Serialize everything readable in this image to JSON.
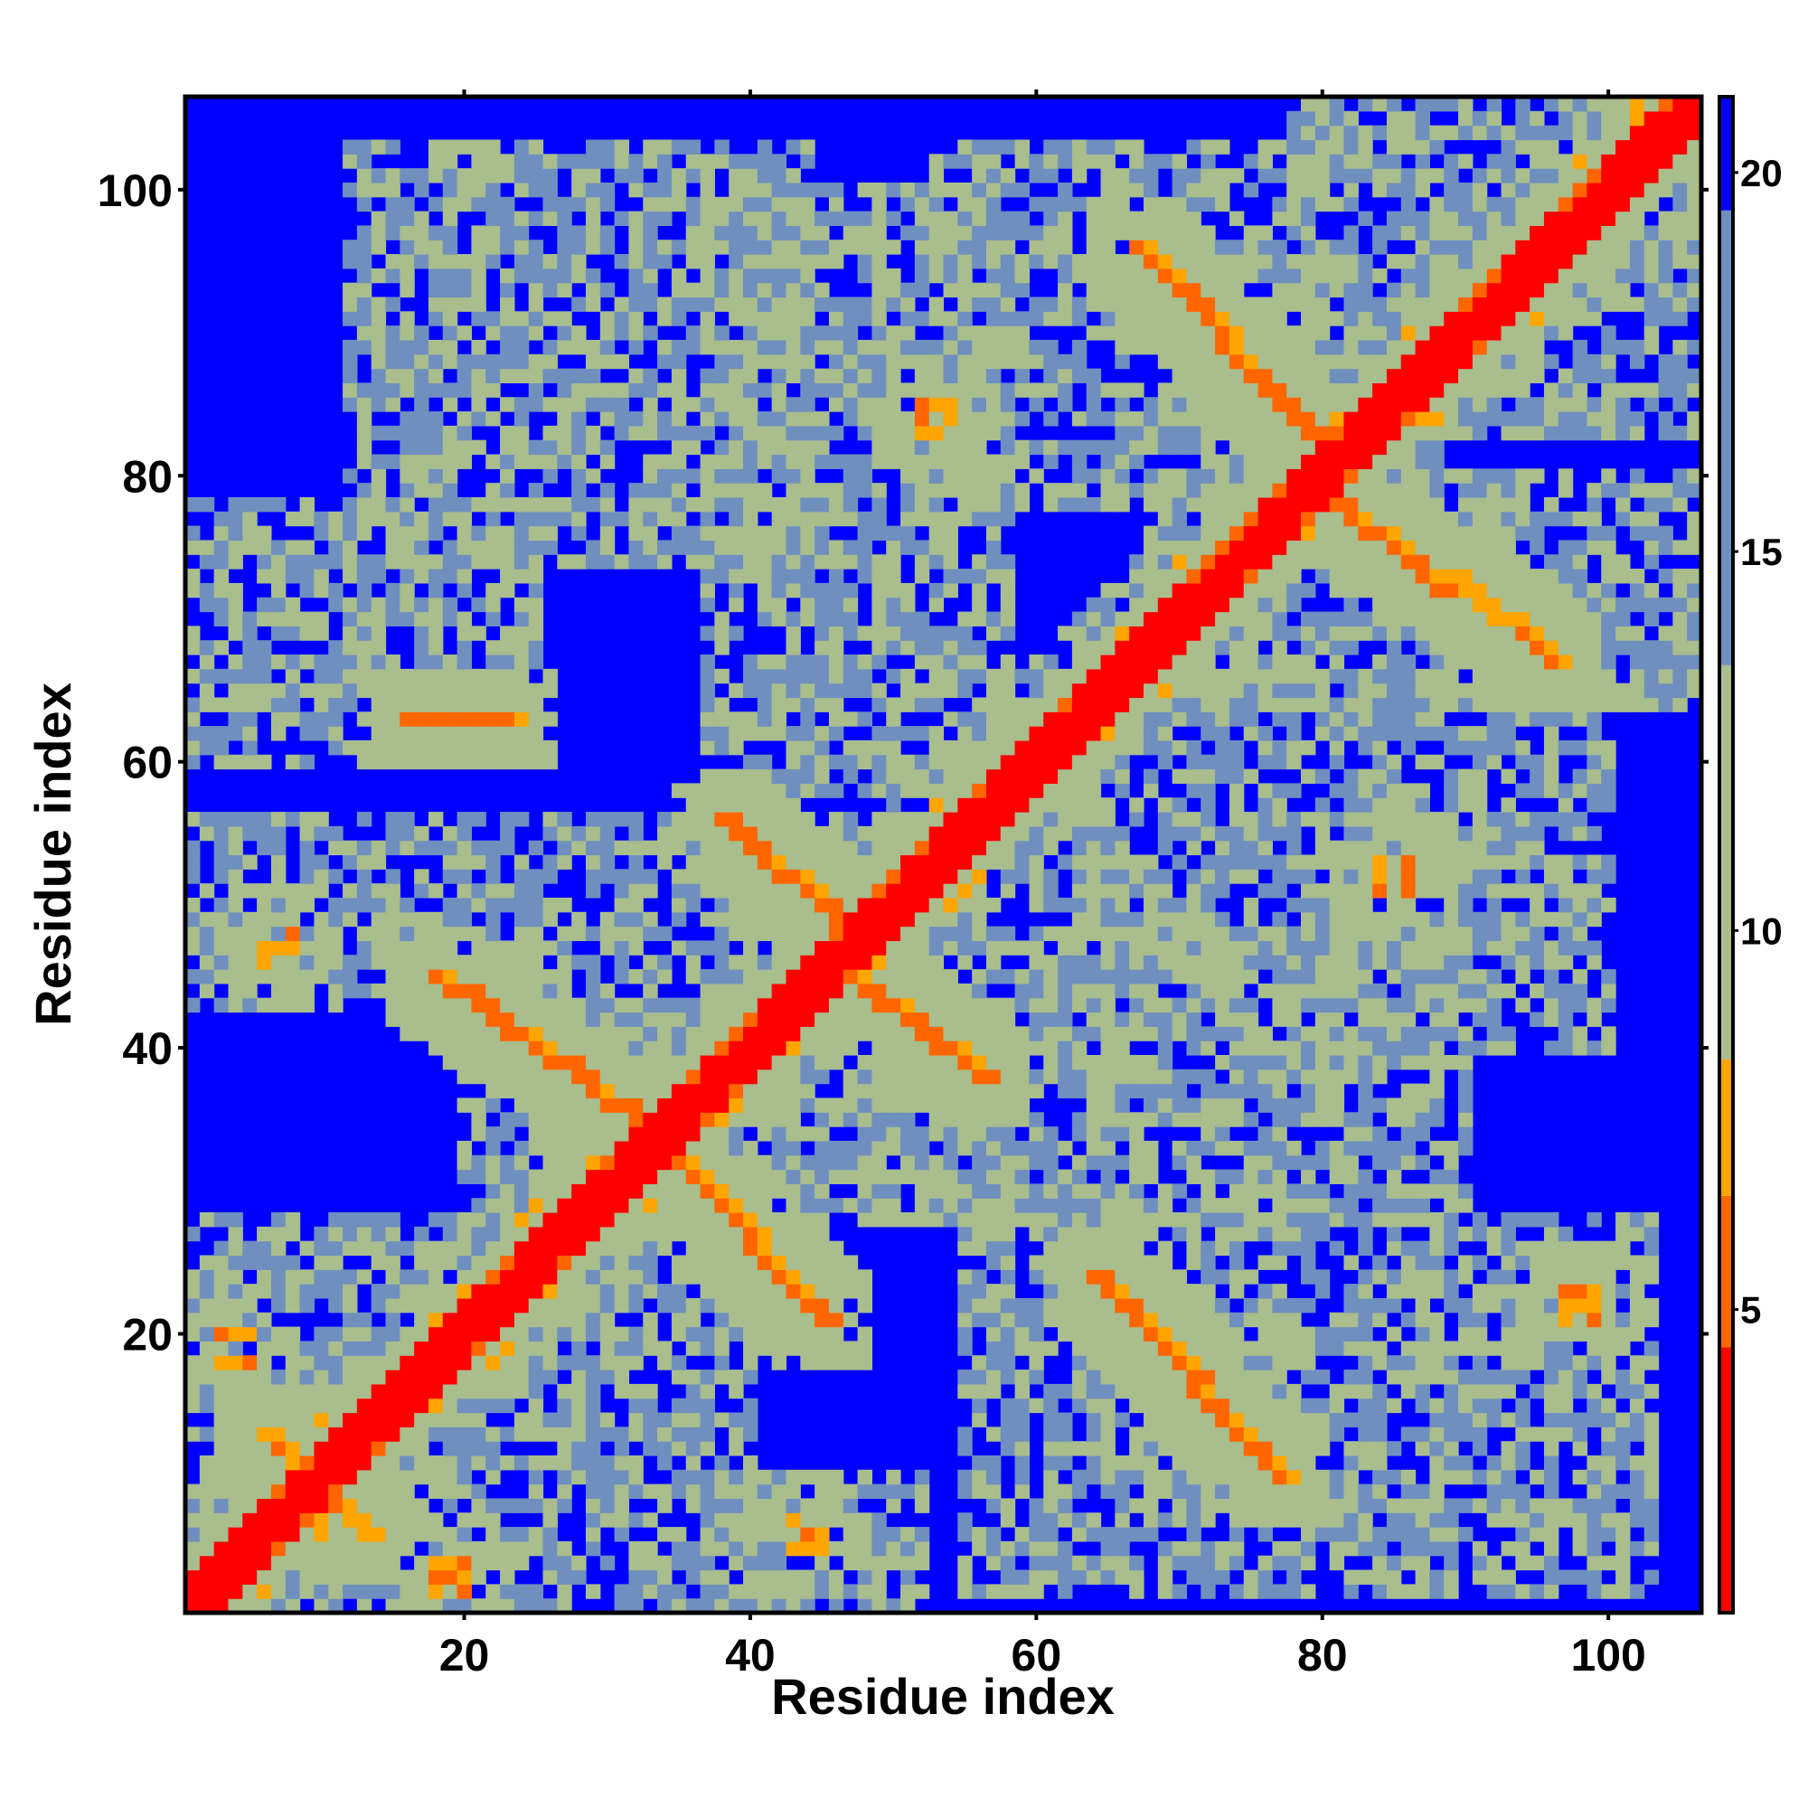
{
  "chart_data": {
    "type": "heatmap",
    "title": "",
    "xlabel": "Residue index",
    "ylabel": "Residue index",
    "n_residues": 106,
    "xlim": [
      0.5,
      106.5
    ],
    "ylim": [
      0.5,
      106.5
    ],
    "x_ticks": [
      20,
      40,
      60,
      80,
      100
    ],
    "y_ticks": [
      20,
      40,
      60,
      80,
      100
    ],
    "x_tick_labels": [
      "20",
      "40",
      "60",
      "80",
      "100"
    ],
    "y_tick_labels": [
      "20",
      "40",
      "60",
      "80",
      "100"
    ],
    "colorbar": {
      "range": [
        1,
        21
      ],
      "ticks": [
        5,
        10,
        15,
        20
      ],
      "tick_labels": [
        "5",
        "10",
        "15",
        "20"
      ],
      "segments": [
        {
          "from": 1,
          "to": 4.5,
          "color": "#ff0000"
        },
        {
          "from": 4.5,
          "to": 6.5,
          "color": "#ff6600"
        },
        {
          "from": 6.5,
          "to": 8.3,
          "color": "#ffa500"
        },
        {
          "from": 8.3,
          "to": 13.5,
          "color": "#a9bd8d"
        },
        {
          "from": 13.5,
          "to": 19.5,
          "color": "#6f8fbf"
        },
        {
          "from": 19.5,
          "to": 21,
          "color": "#0000ff"
        }
      ]
    },
    "background_value": 21,
    "structure": {
      "diagonal": {
        "distance": 1.5,
        "halo_width": 4
      },
      "antiparallel_strands": [
        {
          "i_start": 6,
          "i_end": 13,
          "j_start": 13,
          "j_end": 6,
          "distance": 6
        },
        {
          "i_start": 16,
          "i_end": 23,
          "j_start": 63,
          "j_end": 63,
          "distance": 5
        },
        {
          "i_start": 18,
          "i_end": 32,
          "j_start": 45,
          "j_end": 35,
          "distance": 5
        },
        {
          "i_start": 34,
          "i_end": 45,
          "j_start": 33,
          "j_end": 21,
          "distance": 5
        },
        {
          "i_start": 38,
          "i_end": 47,
          "j_start": 56,
          "j_end": 48,
          "distance": 5
        },
        {
          "i_start": 48,
          "i_end": 56,
          "j_start": 44,
          "j_end": 38,
          "distance": 5
        },
        {
          "i_start": 64,
          "i_end": 77,
          "j_start": 24,
          "j_end": 10,
          "distance": 5
        },
        {
          "i_start": 67,
          "i_end": 79,
          "j_start": 96,
          "j_end": 83,
          "distance": 5
        },
        {
          "i_start": 79,
          "i_end": 88,
          "j_start": 80,
          "j_end": 72,
          "distance": 5
        },
        {
          "i_start": 89,
          "i_end": 96,
          "j_start": 73,
          "j_end": 67,
          "distance": 6
        }
      ],
      "contact_patches": [
        {
          "i": 7,
          "j": 47,
          "distance": 6
        },
        {
          "i": 44,
          "j": 6,
          "distance": 6
        },
        {
          "i": 60,
          "j": 60,
          "distance": 4
        },
        {
          "i": 53,
          "j": 84,
          "distance": 6
        },
        {
          "i": 85,
          "j": 52,
          "distance": 6
        },
        {
          "i": 4,
          "j": 19,
          "distance": 6
        },
        {
          "i": 19,
          "j": 3,
          "distance": 6
        },
        {
          "i": 98,
          "j": 22,
          "distance": 6
        }
      ],
      "noise_regions": [
        {
          "i": [
            1,
            40
          ],
          "j": [
            1,
            28
          ]
        },
        {
          "i": [
            1,
            48
          ],
          "j": [
            43,
            56
          ]
        },
        {
          "i": [
            1,
            25
          ],
          "j": [
            60,
            78
          ]
        },
        {
          "i": [
            12,
            44
          ],
          "j": [
            74,
            103
          ]
        },
        {
          "i": [
            37,
            58
          ],
          "j": [
            58,
            100
          ]
        },
        {
          "i": [
            53,
            80
          ],
          "j": [
            78,
            103
          ]
        },
        {
          "i": [
            60,
            100
          ],
          "j": [
            40,
            66
          ]
        },
        {
          "i": [
            68,
            106
          ],
          "j": [
            64,
            80
          ]
        },
        {
          "i": [
            78,
            106
          ],
          "j": [
            83,
            106
          ]
        },
        {
          "i": [
            55,
            103
          ],
          "j": [
            2,
            28
          ]
        },
        {
          "i": [
            37,
            52
          ],
          "j": [
            1,
            10
          ]
        },
        {
          "i": [
            20,
            58
          ],
          "j": [
            28,
            43
          ]
        },
        {
          "i": [
            48,
            90
          ],
          "j": [
            28,
            48
          ]
        }
      ]
    }
  }
}
